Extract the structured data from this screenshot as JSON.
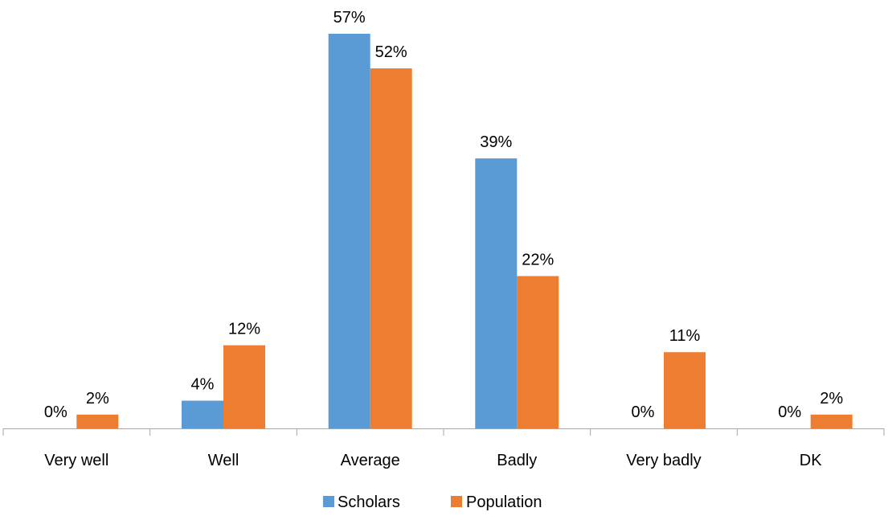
{
  "chart_data": {
    "type": "bar",
    "categories": [
      "Very well",
      "Well",
      "Average",
      "Badly",
      "Very badly",
      "DK"
    ],
    "series": [
      {
        "name": "Scholars",
        "values": [
          0,
          4,
          57,
          39,
          0,
          0
        ],
        "labels": [
          "0%",
          "4%",
          "57%",
          "39%",
          "0%",
          "0%"
        ],
        "color": "#5B9BD5"
      },
      {
        "name": "Population",
        "values": [
          2,
          12,
          52,
          22,
          11,
          2
        ],
        "labels": [
          "2%",
          "12%",
          "52%",
          "22%",
          "11%",
          "2%"
        ],
        "color": "#ED7D31"
      }
    ],
    "unit": "%",
    "ylim": [
      0,
      57
    ],
    "grid": false,
    "legend_position": "bottom",
    "axis_color": "#A6A6A6"
  }
}
